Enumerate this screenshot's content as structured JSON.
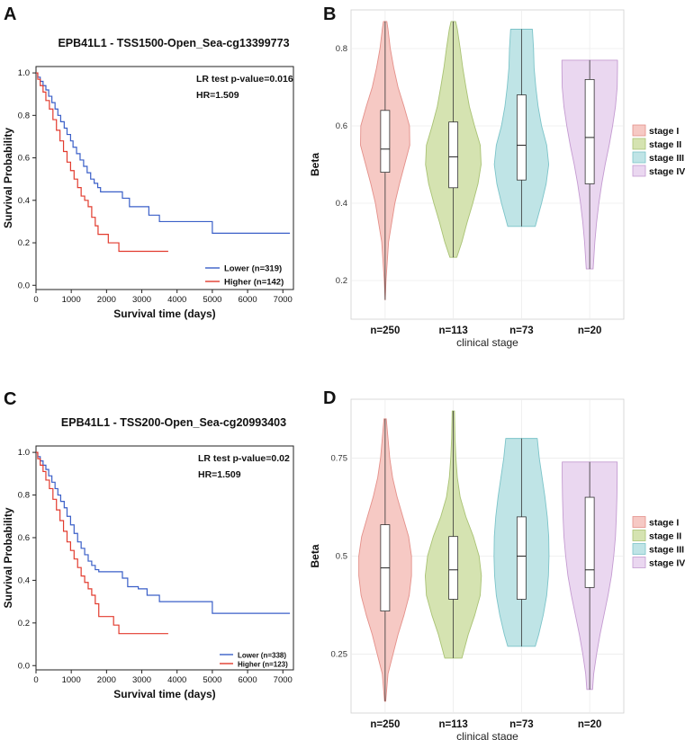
{
  "chart_data": [
    {
      "panel": "A",
      "type": "line",
      "title": "EPB41L1 - TSS1500-Open_Sea-cg13399773",
      "xlabel": "Survival time (days)",
      "ylabel": "Survival Probability",
      "xlim": [
        0,
        7300
      ],
      "ylim": [
        -0.02,
        1.03
      ],
      "xticks": [
        0,
        1000,
        2000,
        3000,
        4000,
        5000,
        6000,
        7000
      ],
      "yticks": [
        0.0,
        0.2,
        0.4,
        0.6,
        0.8,
        1.0
      ],
      "annotations": [
        "LR test p-value=0.016",
        "HR=1.509"
      ],
      "legend_position": "bottom-right",
      "series": [
        {
          "name": "Lower (n=319)",
          "color": "#3a5fc8",
          "x": [
            0,
            50,
            120,
            200,
            280,
            360,
            450,
            540,
            620,
            700,
            800,
            880,
            980,
            1050,
            1150,
            1250,
            1350,
            1450,
            1550,
            1650,
            1750,
            1830,
            1950,
            2050,
            2200,
            2450,
            2650,
            2900,
            3200,
            3500,
            4900,
            5000,
            7200
          ],
          "y": [
            1.0,
            0.98,
            0.96,
            0.94,
            0.92,
            0.89,
            0.86,
            0.83,
            0.8,
            0.77,
            0.74,
            0.71,
            0.68,
            0.65,
            0.62,
            0.59,
            0.56,
            0.53,
            0.5,
            0.48,
            0.46,
            0.44,
            0.44,
            0.44,
            0.44,
            0.41,
            0.37,
            0.37,
            0.33,
            0.3,
            0.3,
            0.245,
            0.245
          ]
        },
        {
          "name": "Higher (n=142)",
          "color": "#e23b2e",
          "x": [
            0,
            50,
            120,
            200,
            280,
            380,
            480,
            580,
            680,
            780,
            880,
            980,
            1080,
            1180,
            1280,
            1380,
            1480,
            1580,
            1680,
            1760,
            1850,
            2050,
            2200,
            2350,
            2450,
            3750
          ],
          "y": [
            1.0,
            0.97,
            0.94,
            0.91,
            0.87,
            0.83,
            0.78,
            0.73,
            0.68,
            0.63,
            0.58,
            0.54,
            0.5,
            0.46,
            0.42,
            0.4,
            0.37,
            0.32,
            0.28,
            0.24,
            0.24,
            0.2,
            0.2,
            0.16,
            0.16,
            0.16
          ]
        }
      ]
    },
    {
      "panel": "B",
      "type": "violin",
      "title": "",
      "xlabel": "clinical stage",
      "ylabel": "Beta",
      "ylim": [
        0.1,
        0.9
      ],
      "yticks": [
        0.2,
        0.4,
        0.6,
        0.8
      ],
      "categories": [
        "n=250",
        "n=113",
        "n=73",
        "n=20"
      ],
      "legend_position": "right",
      "series": [
        {
          "name": "stage I",
          "color": "#f6c9c4",
          "stroke": "#e4908a",
          "min": 0.15,
          "q1": 0.48,
          "median": 0.54,
          "q3": 0.64,
          "max": 0.87,
          "profile": [
            [
              0.15,
              0.002
            ],
            [
              0.2,
              0.03
            ],
            [
              0.3,
              0.12
            ],
            [
              0.4,
              0.34
            ],
            [
              0.45,
              0.5
            ],
            [
              0.5,
              0.68
            ],
            [
              0.55,
              0.86
            ],
            [
              0.6,
              0.85
            ],
            [
              0.65,
              0.66
            ],
            [
              0.7,
              0.45
            ],
            [
              0.75,
              0.3
            ],
            [
              0.8,
              0.18
            ],
            [
              0.85,
              0.1
            ],
            [
              0.87,
              0.06
            ]
          ]
        },
        {
          "name": "stage II",
          "color": "#d5e3b1",
          "stroke": "#a9c274",
          "min": 0.26,
          "q1": 0.44,
          "median": 0.52,
          "q3": 0.61,
          "max": 0.87,
          "profile": [
            [
              0.26,
              0.12
            ],
            [
              0.3,
              0.3
            ],
            [
              0.35,
              0.48
            ],
            [
              0.4,
              0.68
            ],
            [
              0.45,
              0.86
            ],
            [
              0.5,
              0.97
            ],
            [
              0.55,
              0.94
            ],
            [
              0.6,
              0.74
            ],
            [
              0.65,
              0.56
            ],
            [
              0.7,
              0.44
            ],
            [
              0.75,
              0.33
            ],
            [
              0.8,
              0.24
            ],
            [
              0.85,
              0.14
            ],
            [
              0.87,
              0.08
            ]
          ]
        },
        {
          "name": "stage III",
          "color": "#bfe4e6",
          "stroke": "#7cc4c9",
          "min": 0.34,
          "q1": 0.46,
          "median": 0.55,
          "q3": 0.68,
          "max": 0.85,
          "profile": [
            [
              0.34,
              0.48
            ],
            [
              0.4,
              0.7
            ],
            [
              0.45,
              0.86
            ],
            [
              0.5,
              0.95
            ],
            [
              0.55,
              0.88
            ],
            [
              0.6,
              0.7
            ],
            [
              0.65,
              0.58
            ],
            [
              0.7,
              0.5
            ],
            [
              0.75,
              0.44
            ],
            [
              0.8,
              0.42
            ],
            [
              0.85,
              0.38
            ]
          ]
        },
        {
          "name": "stage IV",
          "color": "#ead7f0",
          "stroke": "#c49bd1",
          "min": 0.23,
          "q1": 0.45,
          "median": 0.57,
          "q3": 0.72,
          "max": 0.77,
          "profile": [
            [
              0.23,
              0.12
            ],
            [
              0.3,
              0.18
            ],
            [
              0.35,
              0.24
            ],
            [
              0.4,
              0.32
            ],
            [
              0.45,
              0.42
            ],
            [
              0.5,
              0.54
            ],
            [
              0.55,
              0.68
            ],
            [
              0.6,
              0.8
            ],
            [
              0.65,
              0.9
            ],
            [
              0.7,
              0.96
            ],
            [
              0.75,
              0.97
            ],
            [
              0.77,
              0.97
            ]
          ]
        }
      ]
    },
    {
      "panel": "C",
      "type": "line",
      "title": "EPB41L1 - TSS200-Open_Sea-cg20993403",
      "xlabel": "Survival time (days)",
      "ylabel": "Survival Probability",
      "xlim": [
        0,
        7300
      ],
      "ylim": [
        -0.02,
        1.03
      ],
      "xticks": [
        0,
        1000,
        2000,
        3000,
        4000,
        5000,
        6000,
        7000
      ],
      "yticks": [
        0.0,
        0.2,
        0.4,
        0.6,
        0.8,
        1.0
      ],
      "annotations": [
        "LR test p-value=0.02",
        "HR=1.509"
      ],
      "legend_position": "bottom-right",
      "series": [
        {
          "name": "Lower (n=338)",
          "color": "#3a5fc8",
          "x": [
            0,
            50,
            120,
            200,
            280,
            360,
            450,
            540,
            620,
            700,
            800,
            880,
            980,
            1080,
            1180,
            1280,
            1380,
            1480,
            1580,
            1680,
            1780,
            1900,
            2100,
            2300,
            2450,
            2600,
            2900,
            3150,
            3500,
            4900,
            5000,
            7200
          ],
          "y": [
            1.0,
            0.98,
            0.96,
            0.94,
            0.92,
            0.89,
            0.86,
            0.83,
            0.8,
            0.77,
            0.74,
            0.7,
            0.66,
            0.62,
            0.58,
            0.55,
            0.52,
            0.49,
            0.47,
            0.45,
            0.44,
            0.44,
            0.44,
            0.44,
            0.41,
            0.37,
            0.36,
            0.33,
            0.3,
            0.3,
            0.245,
            0.245
          ]
        },
        {
          "name": "Higher (n=123)",
          "color": "#e23b2e",
          "x": [
            0,
            50,
            120,
            200,
            280,
            380,
            480,
            580,
            680,
            780,
            880,
            980,
            1080,
            1180,
            1280,
            1380,
            1480,
            1580,
            1680,
            1780,
            2000,
            2200,
            2350,
            3750
          ],
          "y": [
            1.0,
            0.97,
            0.94,
            0.91,
            0.87,
            0.83,
            0.78,
            0.73,
            0.68,
            0.63,
            0.58,
            0.54,
            0.5,
            0.46,
            0.42,
            0.39,
            0.36,
            0.33,
            0.29,
            0.23,
            0.23,
            0.19,
            0.15,
            0.15
          ]
        }
      ]
    },
    {
      "panel": "D",
      "type": "violin",
      "title": "",
      "xlabel": "clinical stage",
      "ylabel": "Beta",
      "ylim": [
        0.1,
        0.9
      ],
      "yticks": [
        0.25,
        0.5,
        0.75
      ],
      "categories": [
        "n=250",
        "n=113",
        "n=73",
        "n=20"
      ],
      "legend_position": "right",
      "series": [
        {
          "name": "stage I",
          "color": "#f6c9c4",
          "stroke": "#e4908a",
          "min": 0.13,
          "q1": 0.36,
          "median": 0.47,
          "q3": 0.58,
          "max": 0.85,
          "profile": [
            [
              0.13,
              0.02
            ],
            [
              0.2,
              0.1
            ],
            [
              0.3,
              0.45
            ],
            [
              0.35,
              0.66
            ],
            [
              0.4,
              0.84
            ],
            [
              0.45,
              0.92
            ],
            [
              0.5,
              0.92
            ],
            [
              0.55,
              0.82
            ],
            [
              0.6,
              0.62
            ],
            [
              0.65,
              0.42
            ],
            [
              0.7,
              0.26
            ],
            [
              0.75,
              0.16
            ],
            [
              0.8,
              0.1
            ],
            [
              0.85,
              0.04
            ]
          ]
        },
        {
          "name": "stage II",
          "color": "#d5e3b1",
          "stroke": "#a9c274",
          "min": 0.24,
          "q1": 0.39,
          "median": 0.465,
          "q3": 0.55,
          "max": 0.87,
          "profile": [
            [
              0.24,
              0.3
            ],
            [
              0.3,
              0.52
            ],
            [
              0.35,
              0.75
            ],
            [
              0.4,
              0.94
            ],
            [
              0.45,
              0.98
            ],
            [
              0.5,
              0.9
            ],
            [
              0.55,
              0.7
            ],
            [
              0.6,
              0.44
            ],
            [
              0.65,
              0.24
            ],
            [
              0.7,
              0.14
            ],
            [
              0.75,
              0.09
            ],
            [
              0.8,
              0.06
            ],
            [
              0.87,
              0.04
            ]
          ]
        },
        {
          "name": "stage III",
          "color": "#bfe4e6",
          "stroke": "#7cc4c9",
          "min": 0.27,
          "q1": 0.39,
          "median": 0.5,
          "q3": 0.6,
          "max": 0.8,
          "profile": [
            [
              0.27,
              0.48
            ],
            [
              0.3,
              0.6
            ],
            [
              0.35,
              0.76
            ],
            [
              0.4,
              0.88
            ],
            [
              0.45,
              0.94
            ],
            [
              0.5,
              0.96
            ],
            [
              0.55,
              0.95
            ],
            [
              0.6,
              0.9
            ],
            [
              0.65,
              0.82
            ],
            [
              0.7,
              0.72
            ],
            [
              0.75,
              0.62
            ],
            [
              0.8,
              0.55
            ]
          ]
        },
        {
          "name": "stage IV",
          "color": "#ead7f0",
          "stroke": "#c49bd1",
          "min": 0.16,
          "q1": 0.42,
          "median": 0.465,
          "q3": 0.65,
          "max": 0.74,
          "profile": [
            [
              0.16,
              0.1
            ],
            [
              0.2,
              0.14
            ],
            [
              0.25,
              0.24
            ],
            [
              0.3,
              0.36
            ],
            [
              0.35,
              0.5
            ],
            [
              0.4,
              0.64
            ],
            [
              0.45,
              0.76
            ],
            [
              0.5,
              0.84
            ],
            [
              0.55,
              0.9
            ],
            [
              0.6,
              0.93
            ],
            [
              0.65,
              0.95
            ],
            [
              0.7,
              0.96
            ],
            [
              0.74,
              0.96
            ]
          ]
        }
      ]
    }
  ]
}
